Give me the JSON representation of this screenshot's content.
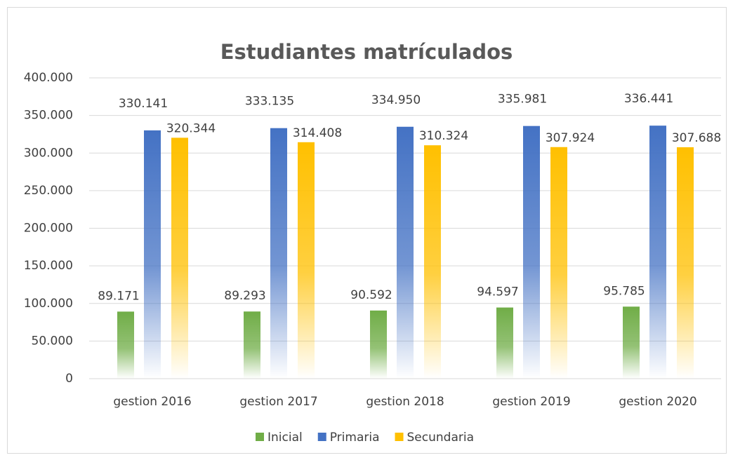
{
  "chart_data": {
    "type": "bar",
    "title": "Estudiantes matrículados",
    "categories": [
      "gestion 2016",
      "gestion 2017",
      "gestion 2018",
      "gestion 2019",
      "gestion 2020"
    ],
    "series": [
      {
        "name": "Inicial",
        "color": "#70ad47",
        "values": [
          89171,
          89293,
          90592,
          94597,
          95785
        ],
        "value_labels": [
          "89.171",
          "89.293",
          "90.592",
          "94.597",
          "95.785"
        ]
      },
      {
        "name": "Primaria",
        "color": "#4472c4",
        "values": [
          330141,
          333135,
          334950,
          335981,
          336441
        ],
        "value_labels": [
          "330.141",
          "333.135",
          "334.950",
          "335.981",
          "336.441"
        ]
      },
      {
        "name": "Secundaria",
        "color": "#ffc000",
        "values": [
          320344,
          314408,
          310324,
          307924,
          307688
        ],
        "value_labels": [
          "320.344",
          "314.408",
          "310.324",
          "307.924",
          "307.688"
        ]
      }
    ],
    "ylim": [
      0,
      400000
    ],
    "yticks": [
      0,
      {
        "value": 50000,
        "label": "50.000"
      },
      {
        "value": 100000,
        "label": "100.000"
      },
      {
        "value": 150000,
        "label": "150.000"
      },
      {
        "value": 200000,
        "label": "200.000"
      },
      {
        "value": 250000,
        "label": "250.000"
      },
      {
        "value": 300000,
        "label": "300.000"
      },
      {
        "value": 350000,
        "label": "350.000"
      },
      {
        "value": 400000,
        "label": "400.000"
      }
    ],
    "grid": true,
    "legend": "bottom"
  }
}
